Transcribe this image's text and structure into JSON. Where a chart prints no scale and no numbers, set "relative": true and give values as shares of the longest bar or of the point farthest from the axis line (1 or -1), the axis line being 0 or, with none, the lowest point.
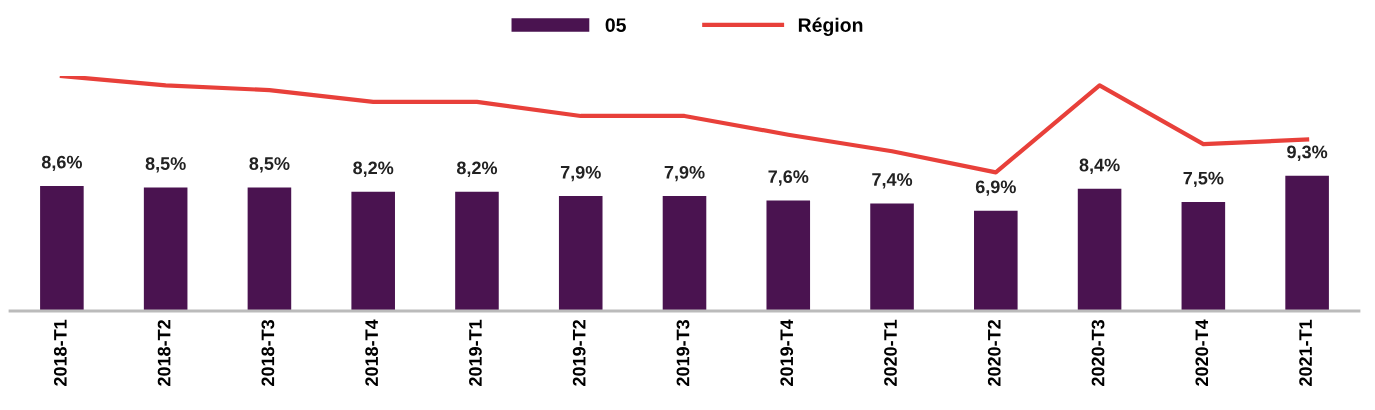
{
  "chart_data": [
    {
      "type": "bar",
      "categories": [
        "2018-T1",
        "2018-T2",
        "2018-T3",
        "2018-T4",
        "2019-T1",
        "2019-T2",
        "2019-T3",
        "2019-T4",
        "2020-T1",
        "2020-T2",
        "2020-T3",
        "2020-T4",
        "2021-T1"
      ],
      "series": [
        {
          "name": "05",
          "color": "#4a1350",
          "values": [
            8.6,
            8.5,
            8.5,
            8.2,
            8.2,
            7.9,
            7.9,
            7.6,
            7.4,
            6.9,
            8.4,
            7.5,
            9.3
          ],
          "value_labels": [
            "8,6%",
            "8,5%",
            "8,5%",
            "8,2%",
            "8,2%",
            "7,9%",
            "7,9%",
            "7,6%",
            "7,4%",
            "6,9%",
            "8,4%",
            "7,5%",
            "9,3%"
          ]
        }
      ],
      "tick_labels": "x",
      "grid": false,
      "legend": "top"
    },
    {
      "type": "line",
      "relative": true,
      "categories": [
        null,
        null,
        null,
        null,
        null,
        null,
        null,
        null,
        null,
        null,
        null,
        null,
        null
      ],
      "series": [
        {
          "name": "Région",
          "color": "#e8403a",
          "values": [
            1.0,
            0.96,
            0.94,
            0.89,
            0.89,
            0.83,
            0.83,
            0.75,
            0.68,
            0.59,
            0.96,
            0.71,
            0.73
          ]
        }
      ],
      "tick_labels": false,
      "grid": false,
      "legend": "top",
      "marker": "none",
      "line_style": "solid"
    }
  ]
}
